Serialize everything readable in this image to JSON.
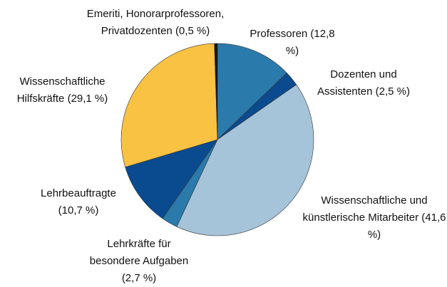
{
  "chart_data": {
    "type": "pie",
    "categories": [
      "Professoren",
      "Dozenten und Assistenten",
      "Wissenschaftliche und künstlerische Mitarbeiter",
      "Lehrkräfte für besondere Aufgaben",
      "Lehrbeauftragte",
      "Wissenschaftliche Hilfskräfte",
      "Emeriti, Honorarprofessoren, Privatdozenten"
    ],
    "values": [
      12.8,
      2.5,
      41.6,
      2.7,
      10.7,
      29.1,
      0.5
    ],
    "value_labels": [
      "(12,8 %)",
      "(2,5 %)",
      "(41,6 %)",
      "(2,7 %)",
      "(10,7 %)",
      "(29,1 %)",
      "(0,5 %)"
    ],
    "colors": [
      "#2a7aab",
      "#0a4a8f",
      "#a5c3d9",
      "#2a7aab",
      "#0a4a8f",
      "#f9c242",
      "#111111"
    ]
  }
}
